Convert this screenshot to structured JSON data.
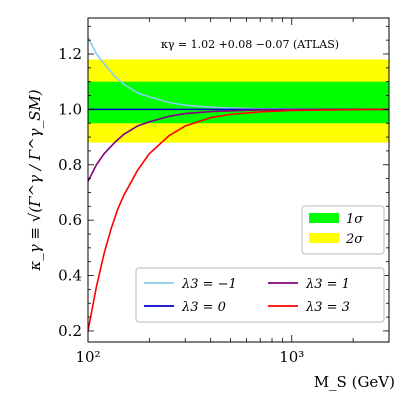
{
  "chart_data": {
    "type": "line",
    "xscale": "log",
    "xlim": [
      100,
      3000
    ],
    "ylim": [
      0.16,
      1.33
    ],
    "xlabel": "M_S (GeV)",
    "ylabel": "κ_γ ≡ √(Γ^γ / Γ^γ_SM)",
    "x_tick_labels": [
      "10²",
      "10³"
    ],
    "x_ticks": [
      100,
      1000
    ],
    "y_ticks": [
      0.2,
      0.4,
      0.6,
      0.8,
      1.0,
      1.2
    ],
    "y_tick_labels": [
      "0.2",
      "0.4",
      "0.6",
      "0.8",
      "1.0",
      "1.2"
    ],
    "annotation": "κγ = 1.02 +0.08 −0.07 (ATLAS)",
    "bands": [
      {
        "name": "2σ",
        "ymin": 0.88,
        "ymax": 1.18,
        "color": "#ffff00"
      },
      {
        "name": "1σ",
        "ymin": 0.95,
        "ymax": 1.1,
        "color": "#00ff00"
      }
    ],
    "band_legend": [
      {
        "label": "1σ",
        "color": "#00ff00"
      },
      {
        "label": "2σ",
        "color": "#ffff00"
      }
    ],
    "series": [
      {
        "name": "λ3 = −1",
        "color": "#87ceeb",
        "x": [
          100,
          110,
          120,
          135,
          150,
          175,
          200,
          250,
          300,
          400,
          500,
          700,
          1000,
          1500,
          2000,
          3000
        ],
        "y": [
          1.26,
          1.2,
          1.165,
          1.12,
          1.09,
          1.06,
          1.045,
          1.025,
          1.015,
          1.008,
          1.005,
          1.002,
          1.001,
          1.0,
          1.0,
          1.0
        ]
      },
      {
        "name": "λ3 = 0",
        "color": "#0000cd",
        "x": [
          100,
          3000
        ],
        "y": [
          1.0,
          1.0
        ]
      },
      {
        "name": "λ3 = 1",
        "color": "#800080",
        "x": [
          100,
          110,
          120,
          135,
          150,
          175,
          200,
          250,
          300,
          400,
          500,
          700,
          1000,
          1500,
          2000,
          3000
        ],
        "y": [
          0.74,
          0.8,
          0.84,
          0.88,
          0.91,
          0.94,
          0.955,
          0.975,
          0.985,
          0.992,
          0.995,
          0.998,
          0.999,
          1.0,
          1.0,
          1.0
        ]
      },
      {
        "name": "λ3 = 3",
        "color": "#ff0000",
        "x": [
          100,
          110,
          120,
          130,
          140,
          150,
          175,
          200,
          250,
          300,
          400,
          500,
          700,
          1000,
          1500,
          2000,
          3000
        ],
        "y": [
          0.2,
          0.36,
          0.48,
          0.57,
          0.64,
          0.69,
          0.78,
          0.84,
          0.905,
          0.94,
          0.97,
          0.982,
          0.991,
          0.996,
          0.998,
          0.999,
          1.0
        ]
      }
    ],
    "legend_placement": "bottom-right",
    "band_legend_placement": "middle-right",
    "grid": false
  }
}
